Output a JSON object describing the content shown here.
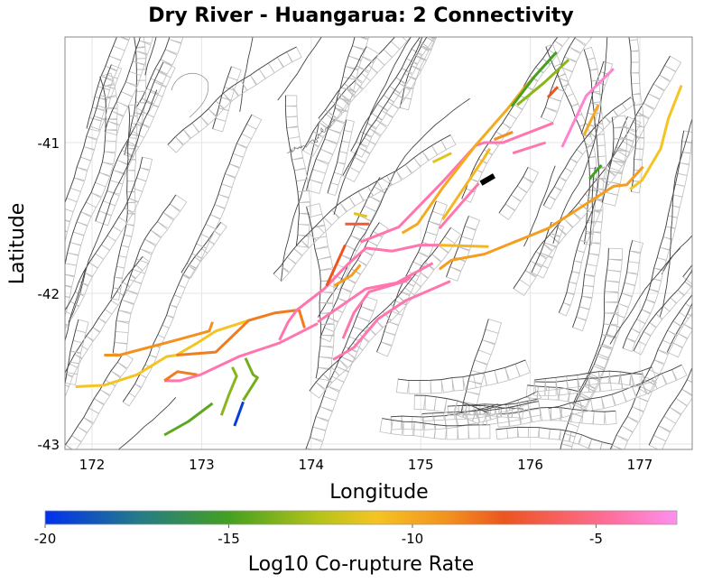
{
  "chart_data": {
    "type": "map",
    "title": "Dry River - Huangarua: 2 Connectivity",
    "xlabel": "Longitude",
    "ylabel": "Latitude",
    "xlim": [
      171.75,
      177.5
    ],
    "ylim": [
      -43.04,
      -40.3
    ],
    "xticks": [
      "172",
      "173",
      "174",
      "175",
      "176",
      "177"
    ],
    "yticks": [
      "-41",
      "-42",
      "-43"
    ],
    "grid": true,
    "colorbar": {
      "label": "Log10 Co-rupture Rate",
      "range": [
        -20,
        -2.8
      ],
      "ticks": [
        "-20",
        "-15",
        "-10",
        "-5"
      ],
      "stops": [
        {
          "v": -20,
          "c": "#0030f0"
        },
        {
          "v": -17.5,
          "c": "#247a8a"
        },
        {
          "v": -15,
          "c": "#44a020"
        },
        {
          "v": -12.5,
          "c": "#b8c418"
        },
        {
          "v": -11,
          "c": "#f5c422"
        },
        {
          "v": -9,
          "c": "#f3901e"
        },
        {
          "v": -7.5,
          "c": "#ec5520"
        },
        {
          "v": -6,
          "c": "#f86060"
        },
        {
          "v": -4.5,
          "c": "#ff70a0"
        },
        {
          "v": -2.8,
          "c": "#ff90f0"
        }
      ]
    },
    "source_color": "#000000",
    "ruptures": [
      {
        "rate": -11,
        "points": [
          [
            171.85,
            -42.62
          ],
          [
            172.11,
            -42.61
          ],
          [
            172.41,
            -42.54
          ],
          [
            172.68,
            -42.42
          ],
          [
            172.77,
            -42.41
          ],
          [
            172.96,
            -42.33
          ],
          [
            173.13,
            -42.25
          ],
          [
            173.43,
            -42.18
          ]
        ]
      },
      {
        "rate": -9,
        "points": [
          [
            172.11,
            -42.41
          ],
          [
            172.25,
            -42.41
          ],
          [
            172.77,
            -42.31
          ],
          [
            173.07,
            -42.25
          ],
          [
            173.1,
            -42.19
          ]
        ]
      },
      {
        "rate": -8.5,
        "points": [
          [
            172.77,
            -42.41
          ],
          [
            173.13,
            -42.39
          ],
          [
            173.43,
            -42.18
          ],
          [
            173.67,
            -42.13
          ],
          [
            173.89,
            -42.11
          ],
          [
            173.94,
            -42.23
          ]
        ]
      },
      {
        "rate": -4.2,
        "points": [
          [
            172.66,
            -42.58
          ],
          [
            172.8,
            -42.58
          ],
          [
            172.99,
            -42.54
          ],
          [
            173.34,
            -42.42
          ],
          [
            173.71,
            -42.33
          ],
          [
            174.06,
            -42.2
          ]
        ]
      },
      {
        "rate": -4.2,
        "points": [
          [
            173.71,
            -42.31
          ],
          [
            173.79,
            -42.19
          ],
          [
            173.87,
            -42.11
          ],
          [
            174.12,
            -41.97
          ],
          [
            174.33,
            -41.81
          ],
          [
            174.5,
            -41.7
          ],
          [
            174.74,
            -41.72
          ],
          [
            174.99,
            -41.68
          ],
          [
            175.17,
            -41.68
          ]
        ]
      },
      {
        "rate": -10.5,
        "points": [
          [
            175.17,
            -41.68
          ],
          [
            175.62,
            -41.69
          ]
        ]
      },
      {
        "rate": -4.2,
        "points": [
          [
            174.06,
            -42.19
          ],
          [
            174.5,
            -41.97
          ],
          [
            174.78,
            -41.93
          ],
          [
            175.11,
            -41.8
          ]
        ]
      },
      {
        "rate": -4.2,
        "points": [
          [
            174.29,
            -42.3
          ],
          [
            174.39,
            -42.13
          ],
          [
            174.53,
            -41.99
          ],
          [
            174.86,
            -41.92
          ],
          [
            174.91,
            -41.89
          ]
        ]
      },
      {
        "rate": -4.2,
        "points": [
          [
            174.2,
            -42.44
          ],
          [
            174.39,
            -42.36
          ],
          [
            174.61,
            -42.17
          ],
          [
            174.86,
            -42.05
          ],
          [
            175.27,
            -41.92
          ]
        ]
      },
      {
        "rate": -7.5,
        "points": [
          [
            174.14,
            -41.95
          ],
          [
            174.31,
            -41.68
          ]
        ]
      },
      {
        "rate": -9.5,
        "points": [
          [
            174.21,
            -41.95
          ],
          [
            174.37,
            -41.88
          ],
          [
            174.45,
            -41.81
          ]
        ]
      },
      {
        "rate": -7,
        "points": [
          [
            174.31,
            -41.54
          ],
          [
            174.53,
            -41.54
          ]
        ]
      },
      {
        "rate": -11.5,
        "points": [
          [
            174.39,
            -41.47
          ],
          [
            174.51,
            -41.49
          ]
        ]
      },
      {
        "rate": -13.5,
        "points": [
          [
            173.28,
            -42.49
          ],
          [
            173.32,
            -42.55
          ],
          [
            173.25,
            -42.67
          ],
          [
            173.18,
            -42.81
          ]
        ]
      },
      {
        "rate": -14,
        "points": [
          [
            173.4,
            -42.43
          ],
          [
            173.47,
            -42.54
          ],
          [
            173.51,
            -42.56
          ],
          [
            173.38,
            -42.71
          ]
        ]
      },
      {
        "rate": -19.5,
        "points": [
          [
            173.38,
            -42.72
          ],
          [
            173.3,
            -42.88
          ]
        ]
      },
      {
        "rate": -14.5,
        "points": [
          [
            172.66,
            -42.94
          ],
          [
            172.88,
            -42.85
          ],
          [
            173.1,
            -42.73
          ]
        ]
      },
      {
        "rate": -8.5,
        "points": [
          [
            172.66,
            -42.58
          ],
          [
            172.78,
            -42.52
          ],
          [
            172.96,
            -42.54
          ]
        ]
      },
      {
        "rate": -9.5,
        "points": [
          [
            175.17,
            -41.84
          ],
          [
            175.28,
            -41.78
          ],
          [
            175.58,
            -41.74
          ],
          [
            176.16,
            -41.57
          ],
          [
            176.76,
            -41.29
          ],
          [
            176.88,
            -41.28
          ],
          [
            177.03,
            -41.16
          ]
        ]
      },
      {
        "rate": -11,
        "points": [
          [
            176.91,
            -41.31
          ],
          [
            177.02,
            -41.25
          ],
          [
            177.19,
            -41.04
          ],
          [
            177.26,
            -40.84
          ],
          [
            177.38,
            -40.62
          ]
        ]
      },
      {
        "rate": -4.2,
        "points": [
          [
            174.45,
            -41.66
          ],
          [
            174.8,
            -41.56
          ],
          [
            175.2,
            -41.26
          ],
          [
            175.5,
            -41.02
          ],
          [
            175.58,
            -41.0
          ],
          [
            175.75,
            -41.0
          ],
          [
            176.21,
            -40.87
          ]
        ]
      },
      {
        "rate": -10,
        "points": [
          [
            174.83,
            -41.6
          ],
          [
            174.97,
            -41.54
          ],
          [
            175.2,
            -41.3
          ],
          [
            175.51,
            -41.01
          ],
          [
            175.8,
            -40.77
          ],
          [
            175.94,
            -40.64
          ],
          [
            176.04,
            -40.56
          ]
        ]
      },
      {
        "rate": -4.2,
        "points": [
          [
            175.17,
            -41.57
          ],
          [
            175.53,
            -41.27
          ]
        ]
      },
      {
        "rate": -10.5,
        "points": [
          [
            175.2,
            -41.51
          ],
          [
            175.58,
            -41.1
          ],
          [
            175.63,
            -41.04
          ]
        ]
      },
      {
        "rate": null,
        "points": [
          [
            175.55,
            -41.27
          ],
          [
            175.67,
            -41.22
          ]
        ]
      },
      {
        "rate": -11.5,
        "points": [
          [
            175.11,
            -41.13
          ],
          [
            175.28,
            -41.07
          ]
        ]
      },
      {
        "rate": -9,
        "points": [
          [
            175.67,
            -40.98
          ],
          [
            175.84,
            -40.93
          ]
        ]
      },
      {
        "rate": -4.2,
        "points": [
          [
            175.84,
            -41.07
          ],
          [
            176.14,
            -41.0
          ]
        ]
      },
      {
        "rate": -3.5,
        "points": [
          [
            176.29,
            -41.03
          ],
          [
            176.51,
            -40.69
          ],
          [
            176.76,
            -40.51
          ]
        ]
      },
      {
        "rate": -10,
        "points": [
          [
            176.49,
            -40.95
          ],
          [
            176.62,
            -40.75
          ]
        ]
      },
      {
        "rate": -15,
        "points": [
          [
            176.54,
            -41.24
          ],
          [
            176.65,
            -41.15
          ]
        ]
      },
      {
        "rate": -7.5,
        "points": [
          [
            176.16,
            -40.7
          ],
          [
            176.25,
            -40.63
          ]
        ]
      },
      {
        "rate": -15,
        "points": [
          [
            175.83,
            -40.76
          ],
          [
            176.04,
            -40.56
          ],
          [
            176.24,
            -40.4
          ]
        ]
      },
      {
        "rate": -13.5,
        "points": [
          [
            175.88,
            -40.75
          ],
          [
            176.13,
            -40.6
          ],
          [
            176.35,
            -40.45
          ]
        ]
      }
    ]
  }
}
